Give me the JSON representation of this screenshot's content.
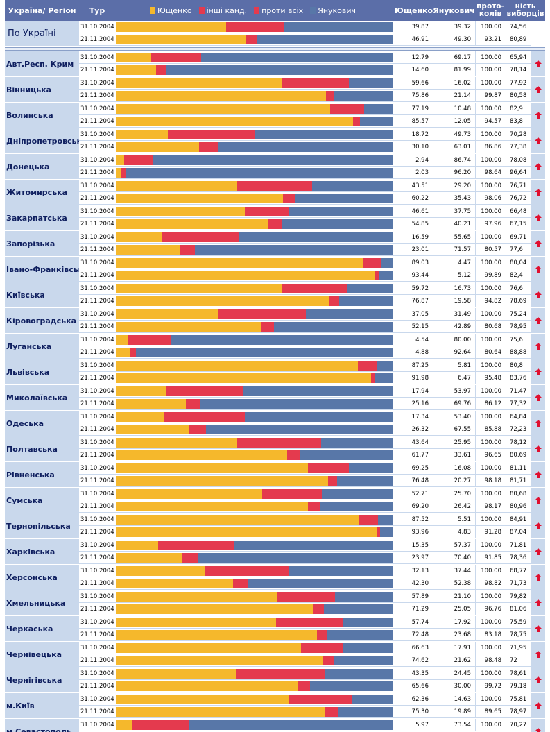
{
  "header": {
    "region": "Україна/ Регіон",
    "tour": "Тур",
    "legend": [
      {
        "label": "Ющенко",
        "color": "#f5b82c"
      },
      {
        "label": "інші канд.",
        "color": "#e43a4e"
      },
      {
        "label": "проти всіх",
        "color": "#e43a4e"
      },
      {
        "label": "Янукович",
        "color": "#5877a8"
      }
    ],
    "col_yush": "Ющенко",
    "col_yan": "Янукович",
    "col_prot": "прото- колів",
    "col_turnout": "ність виборців"
  },
  "chart_data": {
    "type": "bar",
    "stacked": true,
    "orientation": "horizontal",
    "xlim": [
      0,
      100
    ],
    "series_names": [
      "Ющенко",
      "інші канд. / проти всіх",
      "Янукович"
    ],
    "colors": {
      "yush": "#f5b82c",
      "other": "#e43a4e",
      "yan": "#5877a8"
    },
    "regions": [
      {
        "name": "По Україні",
        "rows": [
          {
            "tour": "31.10.2004",
            "yush": "39.87",
            "yan": "39.32",
            "prot": "100.00",
            "turnout": "74,56"
          },
          {
            "tour": "21.11.2004",
            "yush": "46.91",
            "yan": "49.30",
            "prot": "93.21",
            "turnout": "80,89"
          }
        ]
      },
      {
        "name": "Авт.Респ. Крим",
        "rows": [
          {
            "tour": "31.10.2004",
            "yush": "12.79",
            "yan": "69.17",
            "prot": "100.00",
            "turnout": "65,94"
          },
          {
            "tour": "21.11.2004",
            "yush": "14.60",
            "yan": "81.99",
            "prot": "100.00",
            "turnout": "78,14"
          }
        ]
      },
      {
        "name": "Вінницька",
        "rows": [
          {
            "tour": "31.10.2004",
            "yush": "59.66",
            "yan": "16.02",
            "prot": "100.00",
            "turnout": "77,92"
          },
          {
            "tour": "21.11.2004",
            "yush": "75.86",
            "yan": "21.14",
            "prot": "99.87",
            "turnout": "80,58"
          }
        ]
      },
      {
        "name": "Волинська",
        "rows": [
          {
            "tour": "31.10.2004",
            "yush": "77.19",
            "yan": "10.48",
            "prot": "100.00",
            "turnout": "82,9"
          },
          {
            "tour": "21.11.2004",
            "yush": "85.57",
            "yan": "12.05",
            "prot": "94.57",
            "turnout": "83,8"
          }
        ]
      },
      {
        "name": "Дніпропетровська",
        "rows": [
          {
            "tour": "31.10.2004",
            "yush": "18.72",
            "yan": "49.73",
            "prot": "100.00",
            "turnout": "70,28"
          },
          {
            "tour": "21.11.2004",
            "yush": "30.10",
            "yan": "63.01",
            "prot": "86.86",
            "turnout": "77,38"
          }
        ]
      },
      {
        "name": "Донецька",
        "rows": [
          {
            "tour": "31.10.2004",
            "yush": "2.94",
            "yan": "86.74",
            "prot": "100.00",
            "turnout": "78,08"
          },
          {
            "tour": "21.11.2004",
            "yush": "2.03",
            "yan": "96.20",
            "prot": "98.64",
            "turnout": "96,64"
          }
        ]
      },
      {
        "name": "Житомирська",
        "rows": [
          {
            "tour": "31.10.2004",
            "yush": "43.51",
            "yan": "29.20",
            "prot": "100.00",
            "turnout": "76,71"
          },
          {
            "tour": "21.11.2004",
            "yush": "60.22",
            "yan": "35.43",
            "prot": "98.06",
            "turnout": "76,72"
          }
        ]
      },
      {
        "name": "Закарпатська",
        "rows": [
          {
            "tour": "31.10.2004",
            "yush": "46.61",
            "yan": "37.75",
            "prot": "100.00",
            "turnout": "66,48"
          },
          {
            "tour": "21.11.2004",
            "yush": "54.85",
            "yan": "40.21",
            "prot": "97.96",
            "turnout": "67,15"
          }
        ]
      },
      {
        "name": "Запорізька",
        "rows": [
          {
            "tour": "31.10.2004",
            "yush": "16.59",
            "yan": "55.65",
            "prot": "100.00",
            "turnout": "69,71"
          },
          {
            "tour": "21.11.2004",
            "yush": "23.01",
            "yan": "71.57",
            "prot": "80.57",
            "turnout": "77,6"
          }
        ]
      },
      {
        "name": "Івано-Франківська",
        "rows": [
          {
            "tour": "31.10.2004",
            "yush": "89.03",
            "yan": "4.47",
            "prot": "100.00",
            "turnout": "80,04"
          },
          {
            "tour": "21.11.2004",
            "yush": "93.44",
            "yan": "5.12",
            "prot": "99.89",
            "turnout": "82,4"
          }
        ]
      },
      {
        "name": "Київська",
        "rows": [
          {
            "tour": "31.10.2004",
            "yush": "59.72",
            "yan": "16.73",
            "prot": "100.00",
            "turnout": "76,6"
          },
          {
            "tour": "21.11.2004",
            "yush": "76.87",
            "yan": "19.58",
            "prot": "94.82",
            "turnout": "78,69"
          }
        ]
      },
      {
        "name": "Кіровоградська",
        "rows": [
          {
            "tour": "31.10.2004",
            "yush": "37.05",
            "yan": "31.49",
            "prot": "100.00",
            "turnout": "75,24"
          },
          {
            "tour": "21.11.2004",
            "yush": "52.15",
            "yan": "42.89",
            "prot": "80.68",
            "turnout": "78,95"
          }
        ]
      },
      {
        "name": "Луганська",
        "rows": [
          {
            "tour": "31.10.2004",
            "yush": "4.54",
            "yan": "80.00",
            "prot": "100.00",
            "turnout": "75,6"
          },
          {
            "tour": "21.11.2004",
            "yush": "4.88",
            "yan": "92.64",
            "prot": "80.64",
            "turnout": "88,88"
          }
        ]
      },
      {
        "name": "Львівська",
        "rows": [
          {
            "tour": "31.10.2004",
            "yush": "87.25",
            "yan": "5.81",
            "prot": "100.00",
            "turnout": "80,8"
          },
          {
            "tour": "21.11.2004",
            "yush": "91.98",
            "yan": "6.47",
            "prot": "95.48",
            "turnout": "83,76"
          }
        ]
      },
      {
        "name": "Миколаївська",
        "rows": [
          {
            "tour": "31.10.2004",
            "yush": "17.94",
            "yan": "53.97",
            "prot": "100.00",
            "turnout": "71,47"
          },
          {
            "tour": "21.11.2004",
            "yush": "25.16",
            "yan": "69.76",
            "prot": "86.12",
            "turnout": "77,32"
          }
        ]
      },
      {
        "name": "Одеська",
        "rows": [
          {
            "tour": "31.10.2004",
            "yush": "17.34",
            "yan": "53.40",
            "prot": "100.00",
            "turnout": "64,84"
          },
          {
            "tour": "21.11.2004",
            "yush": "26.32",
            "yan": "67.55",
            "prot": "85.88",
            "turnout": "72,23"
          }
        ]
      },
      {
        "name": "Полтавська",
        "rows": [
          {
            "tour": "31.10.2004",
            "yush": "43.64",
            "yan": "25.95",
            "prot": "100.00",
            "turnout": "78,12"
          },
          {
            "tour": "21.11.2004",
            "yush": "61.77",
            "yan": "33.61",
            "prot": "96.65",
            "turnout": "80,69"
          }
        ]
      },
      {
        "name": "Рівненська",
        "rows": [
          {
            "tour": "31.10.2004",
            "yush": "69.25",
            "yan": "16.08",
            "prot": "100.00",
            "turnout": "81,11"
          },
          {
            "tour": "21.11.2004",
            "yush": "76.48",
            "yan": "20.27",
            "prot": "98.18",
            "turnout": "81,71"
          }
        ]
      },
      {
        "name": "Сумська",
        "rows": [
          {
            "tour": "31.10.2004",
            "yush": "52.71",
            "yan": "25.70",
            "prot": "100.00",
            "turnout": "80,68"
          },
          {
            "tour": "21.11.2004",
            "yush": "69.20",
            "yan": "26.42",
            "prot": "98.17",
            "turnout": "80,96"
          }
        ]
      },
      {
        "name": "Тернопільська",
        "rows": [
          {
            "tour": "31.10.2004",
            "yush": "87.52",
            "yan": "5.51",
            "prot": "100.00",
            "turnout": "84,91"
          },
          {
            "tour": "21.11.2004",
            "yush": "93.96",
            "yan": "4.83",
            "prot": "91.28",
            "turnout": "87,04"
          }
        ]
      },
      {
        "name": "Харківська",
        "rows": [
          {
            "tour": "31.10.2004",
            "yush": "15.35",
            "yan": "57.37",
            "prot": "100.00",
            "turnout": "71,81"
          },
          {
            "tour": "21.11.2004",
            "yush": "23.97",
            "yan": "70.40",
            "prot": "91.85",
            "turnout": "78,36"
          }
        ]
      },
      {
        "name": "Херсонська",
        "rows": [
          {
            "tour": "31.10.2004",
            "yush": "32.13",
            "yan": "37.44",
            "prot": "100.00",
            "turnout": "68,77"
          },
          {
            "tour": "21.11.2004",
            "yush": "42.30",
            "yan": "52.38",
            "prot": "98.82",
            "turnout": "71,73"
          }
        ]
      },
      {
        "name": "Хмельницька",
        "rows": [
          {
            "tour": "31.10.2004",
            "yush": "57.89",
            "yan": "21.10",
            "prot": "100.00",
            "turnout": "79,82"
          },
          {
            "tour": "21.11.2004",
            "yush": "71.29",
            "yan": "25.05",
            "prot": "96.76",
            "turnout": "81,06"
          }
        ]
      },
      {
        "name": "Черкаська",
        "rows": [
          {
            "tour": "31.10.2004",
            "yush": "57.74",
            "yan": "17.92",
            "prot": "100.00",
            "turnout": "75,59"
          },
          {
            "tour": "21.11.2004",
            "yush": "72.48",
            "yan": "23.68",
            "prot": "83.18",
            "turnout": "78,75"
          }
        ]
      },
      {
        "name": "Чернівецька",
        "rows": [
          {
            "tour": "31.10.2004",
            "yush": "66.63",
            "yan": "17.91",
            "prot": "100.00",
            "turnout": "71,95"
          },
          {
            "tour": "21.11.2004",
            "yush": "74.62",
            "yan": "21.62",
            "prot": "98.48",
            "turnout": "72"
          }
        ]
      },
      {
        "name": "Чернігівська",
        "rows": [
          {
            "tour": "31.10.2004",
            "yush": "43.35",
            "yan": "24.45",
            "prot": "100.00",
            "turnout": "78,61"
          },
          {
            "tour": "21.11.2004",
            "yush": "65.66",
            "yan": "30.00",
            "prot": "99.72",
            "turnout": "79,18"
          }
        ]
      },
      {
        "name": "м.Київ",
        "rows": [
          {
            "tour": "31.10.2004",
            "yush": "62.36",
            "yan": "14.63",
            "prot": "100.00",
            "turnout": "75,81"
          },
          {
            "tour": "21.11.2004",
            "yush": "75.30",
            "yan": "19.89",
            "prot": "89.65",
            "turnout": "78,97"
          }
        ]
      },
      {
        "name": "м.Севастополь",
        "rows": [
          {
            "tour": "31.10.2004",
            "yush": "5.97",
            "yan": "73.54",
            "prot": "100.00",
            "turnout": "70,27"
          }
        ]
      }
    ]
  }
}
